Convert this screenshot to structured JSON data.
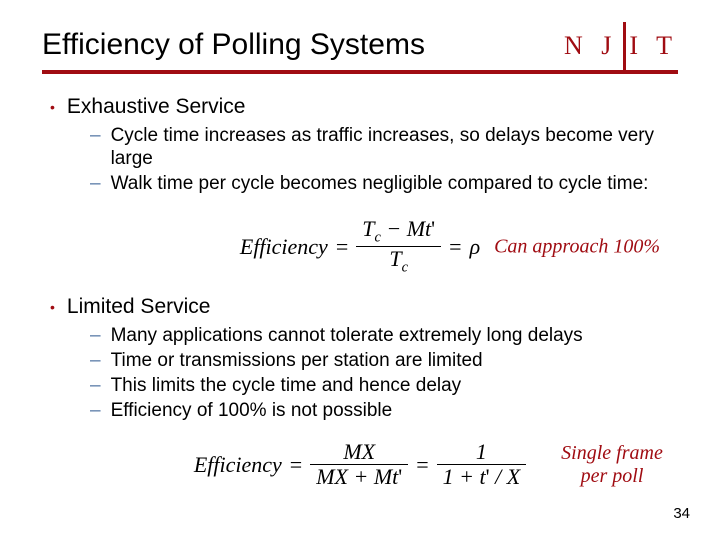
{
  "logo": {
    "text": "N J",
    "text2": "I T",
    "color": "#a00c12"
  },
  "title": "Efficiency of Polling Systems",
  "ruleColor": "#a00c12",
  "sections": [
    {
      "heading": "Exhaustive Service",
      "items": [
        "Cycle time increases as traffic increases, so delays become very large",
        "Walk time per cycle becomes negligible compared to cycle time:"
      ],
      "equation": {
        "lhs": "Efficiency",
        "num": "T_c − Mt'",
        "den": "T_c",
        "rhs": "ρ"
      },
      "annotation": "Can approach 100%"
    },
    {
      "heading": "Limited Service",
      "items": [
        "Many applications cannot tolerate extremely long delays",
        "Time or transmissions per station are limited",
        "This limits the cycle time and hence delay",
        "Efficiency of 100% is not possible"
      ],
      "equation": {
        "lhs": "Efficiency",
        "num1": "MX",
        "den1": "MX + Mt'",
        "num2": "1",
        "den2": "1 + t' / X"
      },
      "annotation": "Single frame per poll"
    }
  ],
  "pageNumber": "34",
  "colors": {
    "accent": "#a00c12",
    "dash": "#5b7da8",
    "text": "#000000",
    "background": "#ffffff"
  },
  "fonts": {
    "title": "Verdana",
    "body": "Arial",
    "math": "Times New Roman"
  }
}
